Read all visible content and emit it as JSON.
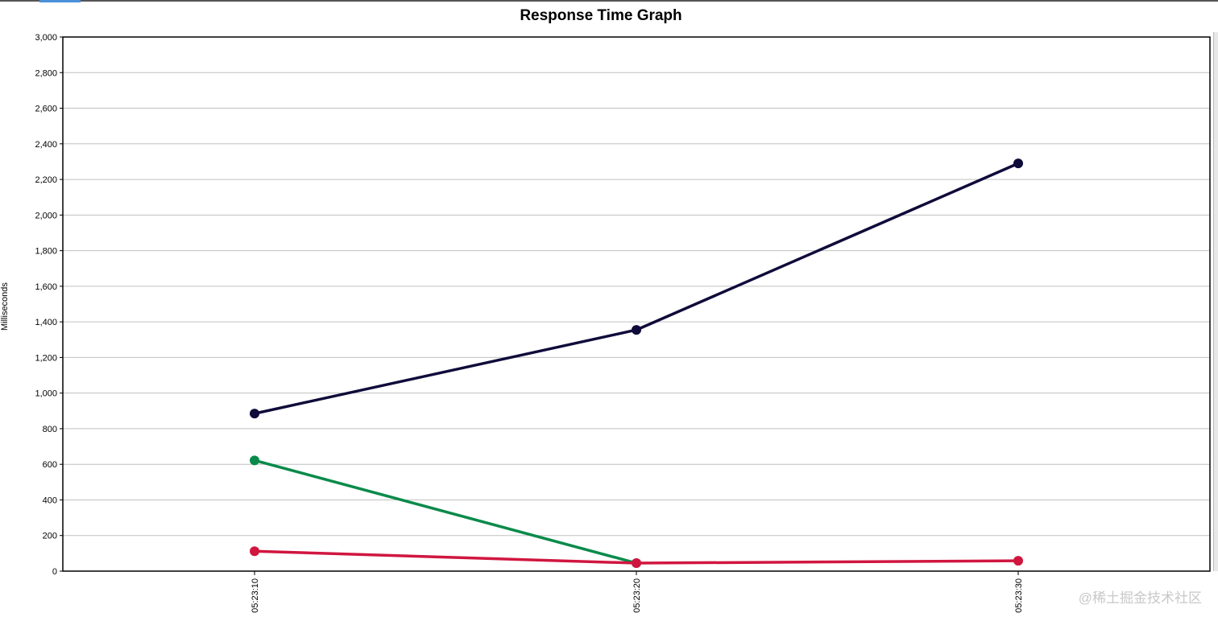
{
  "chart_data": {
    "type": "line",
    "title": "Response Time Graph",
    "xlabel": "",
    "ylabel": "Milliseconds",
    "ylim": [
      0,
      3000
    ],
    "yticks": [
      0,
      200,
      400,
      600,
      800,
      1000,
      1200,
      1400,
      1600,
      1800,
      2000,
      2200,
      2400,
      2600,
      2800,
      3000
    ],
    "x": [
      "05:23:10",
      "05:23:20",
      "05:23:30"
    ],
    "grid": true,
    "series": [
      {
        "color": "#0f0b3a",
        "values": [
          885,
          1355,
          2290
        ]
      },
      {
        "color": "#0a8a4a",
        "values": [
          622,
          45,
          null
        ]
      },
      {
        "color": "#d0163f",
        "values": [
          112,
          45,
          58
        ]
      }
    ]
  },
  "watermark": "@稀土掘金技术社区"
}
